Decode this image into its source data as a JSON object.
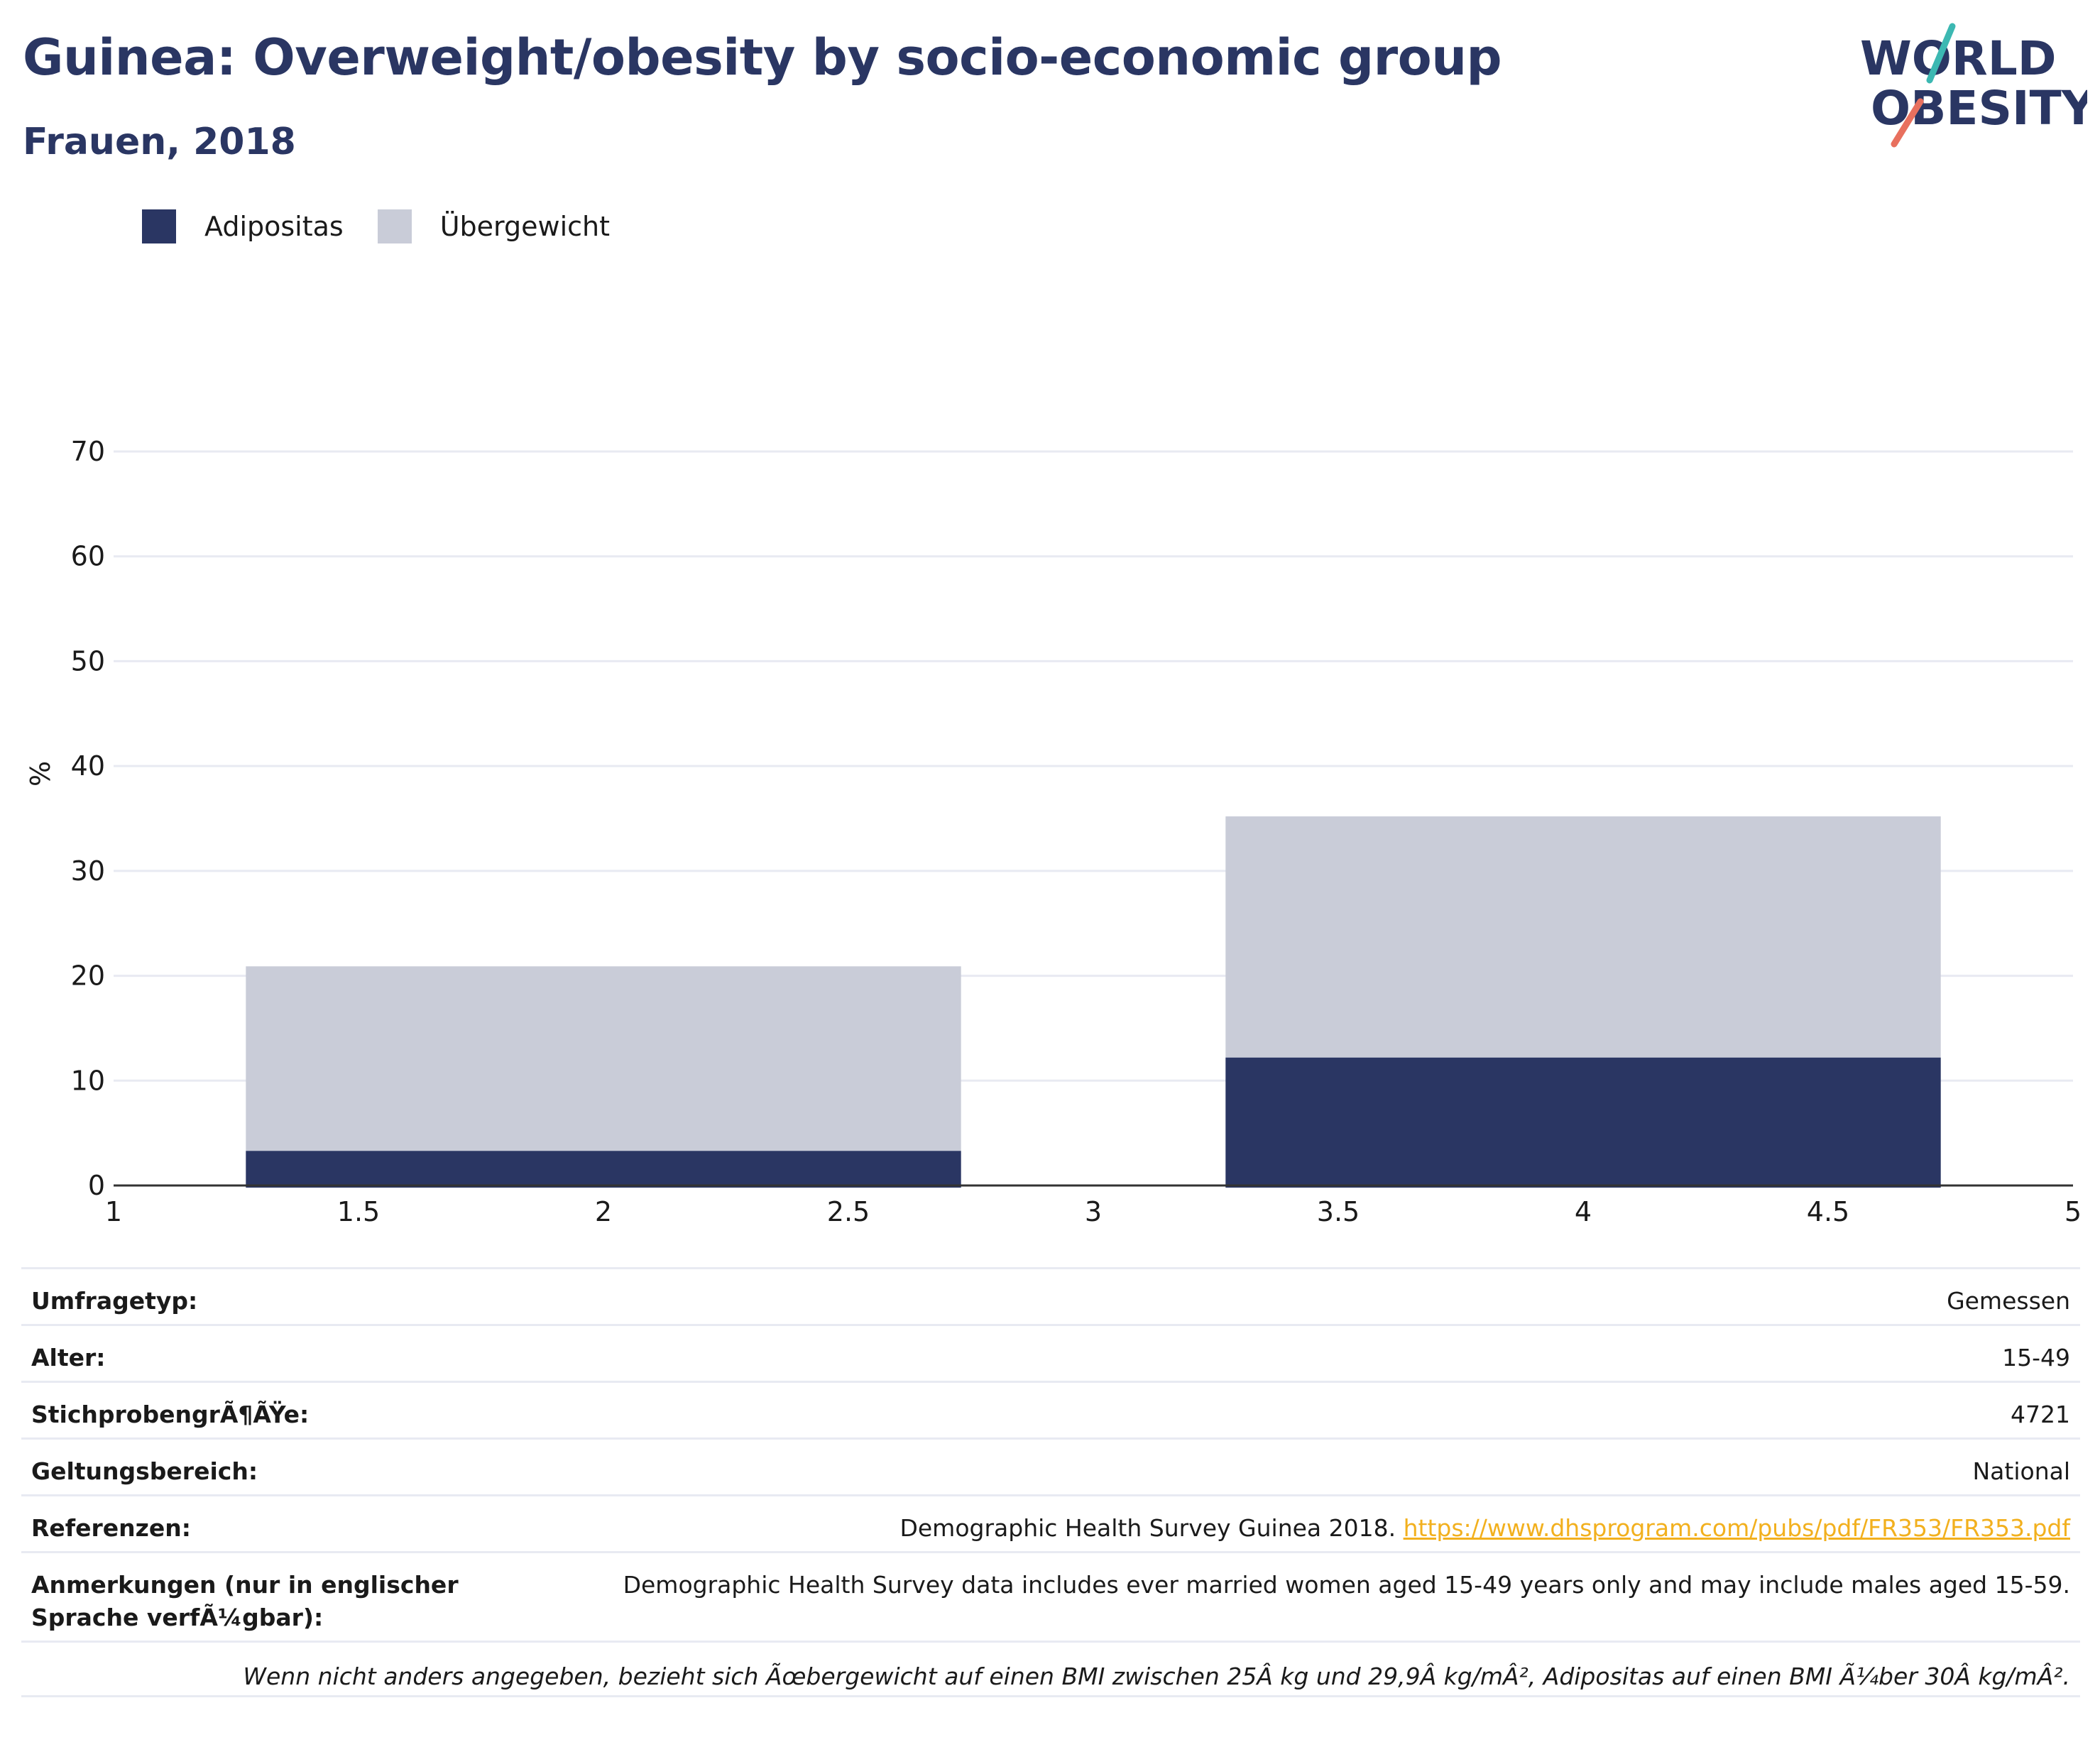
{
  "title": "Guinea: Overweight/obesity by socio-economic group",
  "subtitle": "Frauen, 2018",
  "logo": {
    "line1": "WORLD",
    "line2": "OBESITY"
  },
  "colors": {
    "adipositas": "#2a3663",
    "uebergewicht": "#c9ccd8",
    "title": "#2a3663",
    "link": "#f2b01e"
  },
  "legend": [
    {
      "label": "Adipositas",
      "color": "#2a3663"
    },
    {
      "label": "Übergewicht",
      "color": "#c9ccd8"
    }
  ],
  "chart_data": {
    "type": "bar",
    "stacked": true,
    "ylabel": "%",
    "xlim": [
      1,
      5
    ],
    "ylim": [
      0,
      70
    ],
    "xticks": [
      1,
      1.5,
      2,
      2.5,
      3,
      3.5,
      4,
      4.5,
      5
    ],
    "yticks": [
      0,
      10,
      20,
      30,
      40,
      50,
      60,
      70
    ],
    "grid": true,
    "legend_position": "top-left",
    "bars": [
      {
        "x_start": 1.27,
        "x_end": 2.73,
        "adipositas": 3.3,
        "uebergewicht": 17.6
      },
      {
        "x_start": 3.27,
        "x_end": 4.73,
        "adipositas": 12.2,
        "uebergewicht": 23.0
      }
    ],
    "series": [
      {
        "name": "Adipositas",
        "values": [
          3.3,
          12.2
        ]
      },
      {
        "name": "Übergewicht",
        "values": [
          17.6,
          23.0
        ]
      }
    ]
  },
  "meta": {
    "rows": [
      {
        "key": "Umfragetyp:",
        "value": "Gemessen"
      },
      {
        "key": "Alter:",
        "value": "15-49"
      },
      {
        "key": "StichprobengrÃ¶ÃŸe:",
        "value": "4721"
      },
      {
        "key": "Geltungsbereich:",
        "value": "National"
      }
    ],
    "references": {
      "key": "Referenzen:",
      "text": "Demographic Health Survey Guinea 2018. ",
      "link": "https://www.dhsprogram.com/pubs/pdf/FR353/FR353.pdf"
    },
    "notes": {
      "key": "Anmerkungen (nur in englischer Sprache verfÃ¼gbar):",
      "value": "Demographic Health Survey data includes ever married women aged 15-49 years only and may include males aged 15-59."
    },
    "footnote": "Wenn nicht anders angegeben, bezieht sich Ãœbergewicht auf einen BMI zwischen 25Â kg und 29,9Â kg/mÂ², Adipositas auf einen BMI Ã¼ber 30Â kg/mÂ²."
  }
}
